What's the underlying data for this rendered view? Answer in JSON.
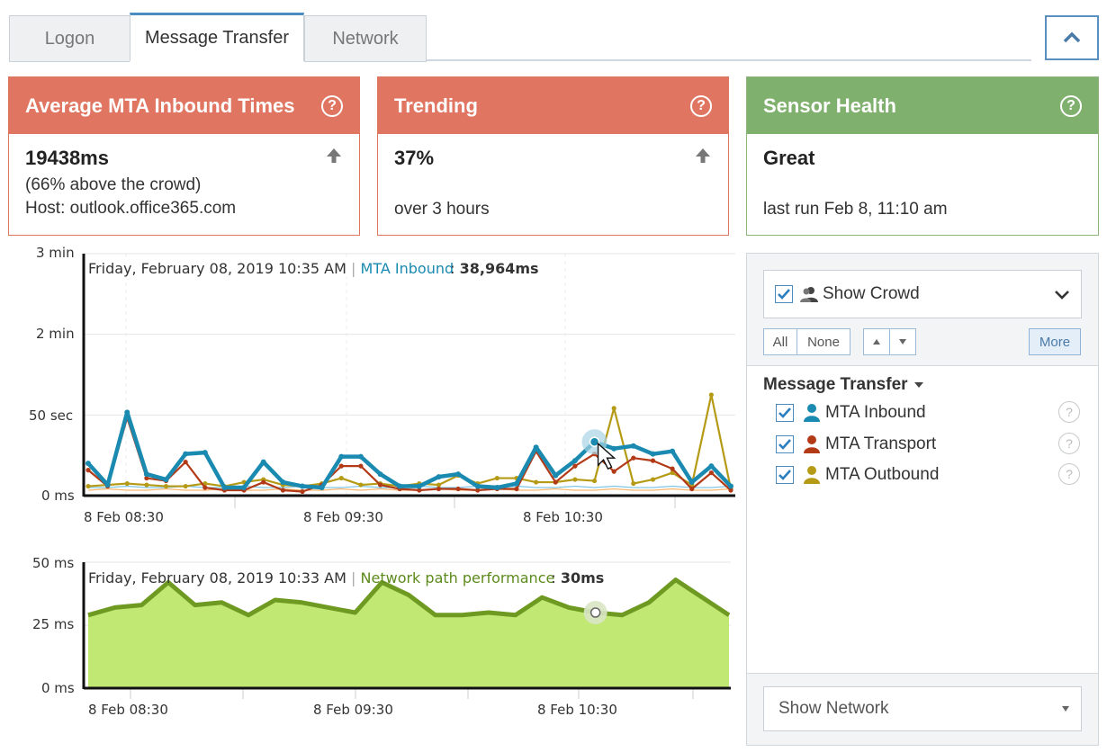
{
  "tabs": [
    {
      "label": "Logon"
    },
    {
      "label": "Message Transfer"
    },
    {
      "label": "Network"
    }
  ],
  "cards": {
    "inbound": {
      "title": "Average MTA Inbound Times",
      "value": "19438ms",
      "line2": "(66% above the crowd)",
      "line3": "Host: outlook.office365.com"
    },
    "trending": {
      "title": "Trending",
      "value": "37%",
      "line3": "over 3 hours"
    },
    "sensor": {
      "title": "Sensor Health",
      "value": "Great",
      "line3": "last run Feb 8, 11:10 am"
    }
  },
  "colors": {
    "red_header": "#e07561",
    "green_header": "#80b06e",
    "inbound": "#1a8ab0",
    "transport": "#b23a17",
    "outbound": "#b59a16",
    "network_fill": "#c0e872",
    "network_line": "#6e9a22"
  },
  "top_chart": {
    "y_ticks": [
      "3 min",
      "2 min",
      "50 sec",
      "0 ms"
    ],
    "x_ticks": [
      "8 Feb 08:30",
      "8 Feb 09:30",
      "8 Feb 10:30"
    ],
    "tooltip_date": "Friday, February 08, 2019 10:35 AM",
    "tooltip_sep": "|",
    "tooltip_series": "MTA Inbound",
    "tooltip_colon": ":",
    "tooltip_value": "38,964ms"
  },
  "bottom_chart": {
    "y_ticks": [
      "50 ms",
      "25 ms",
      "0 ms"
    ],
    "x_ticks": [
      "8 Feb 08:30",
      "8 Feb 09:30",
      "8 Feb 10:30"
    ],
    "tooltip_date": "Friday, February 08, 2019 10:33 AM",
    "tooltip_sep": "|",
    "tooltip_series": "Network path performance",
    "tooltip_colon": ":",
    "tooltip_value": "30ms"
  },
  "chart_data": [
    {
      "type": "line",
      "ylim": [
        0,
        180
      ],
      "y_unit": "seconds",
      "series": [
        {
          "name": "MTA Inbound",
          "values": [
            24,
            8,
            62,
            16,
            12,
            31,
            32,
            6,
            6,
            25,
            10,
            7,
            6,
            29,
            29,
            16,
            7,
            7,
            14,
            16,
            7,
            6,
            9,
            36,
            15,
            26,
            40,
            35,
            37,
            31,
            33,
            10,
            22,
            7
          ]
        },
        {
          "name": "MTA Transport",
          "values": [
            19,
            7,
            58,
            13,
            11,
            25,
            6,
            4,
            4,
            10,
            4,
            3,
            8,
            22,
            22,
            8,
            5,
            4,
            5,
            5,
            4,
            5,
            5,
            33,
            10,
            22,
            31,
            18,
            28,
            26,
            20,
            5,
            17,
            4
          ]
        },
        {
          "name": "MTA Outbound",
          "values": [
            7,
            8,
            9,
            8,
            7,
            7,
            9,
            7,
            10,
            12,
            8,
            7,
            9,
            13,
            8,
            9,
            7,
            9,
            8,
            15,
            9,
            13,
            13,
            10,
            10,
            12,
            11,
            65,
            9,
            12,
            17,
            8,
            75,
            5
          ]
        }
      ],
      "x_ticks": [
        "8 Feb 08:30",
        "8 Feb 09:30",
        "8 Feb 10:30"
      ]
    },
    {
      "type": "area",
      "ylim": [
        0,
        50
      ],
      "y_unit": "ms",
      "series": [
        {
          "name": "Network path performance",
          "values": [
            29,
            32,
            33,
            42,
            33,
            34,
            29,
            35,
            34,
            32,
            30,
            42,
            37,
            29,
            29,
            30,
            29,
            36,
            32,
            30,
            29,
            34,
            43,
            36,
            29
          ]
        }
      ],
      "x_ticks": [
        "8 Feb 08:30",
        "8 Feb 09:30",
        "8 Feb 10:30"
      ]
    }
  ],
  "right_panel": {
    "crowd_label": "Show Crowd",
    "buttons": {
      "all": "All",
      "none": "None",
      "more": "More"
    },
    "section_title": "Message Transfer",
    "legend": [
      {
        "label": "MTA Inbound",
        "color": "#1a8ab0"
      },
      {
        "label": "MTA Transport",
        "color": "#b23a17"
      },
      {
        "label": "MTA Outbound",
        "color": "#b59a16"
      }
    ],
    "network_select": "Show Network"
  }
}
